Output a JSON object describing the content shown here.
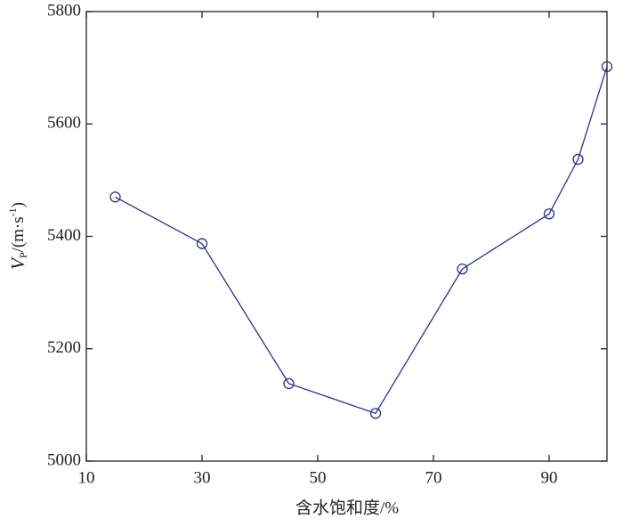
{
  "chart_data": {
    "type": "line",
    "x_label": "含水饱和度/%",
    "y_label": {
      "symbol": "V",
      "subscript": "P",
      "unit": "/(m·s",
      "superscript": "-1",
      "close": ")"
    },
    "x": [
      15,
      30,
      45,
      60,
      75,
      90,
      95,
      100
    ],
    "series": [
      {
        "color": "#2e2e8f",
        "values": [
          5470,
          5387,
          5138,
          5085,
          5342,
          5440,
          5537,
          5702
        ]
      }
    ],
    "xlim": [
      10,
      100
    ],
    "xticks": [
      10,
      30,
      50,
      70,
      90
    ],
    "ylim": [
      5000,
      5800
    ],
    "yticks": [
      5000,
      5200,
      5400,
      5600,
      5800
    ],
    "marker": "circle",
    "grid": false
  }
}
